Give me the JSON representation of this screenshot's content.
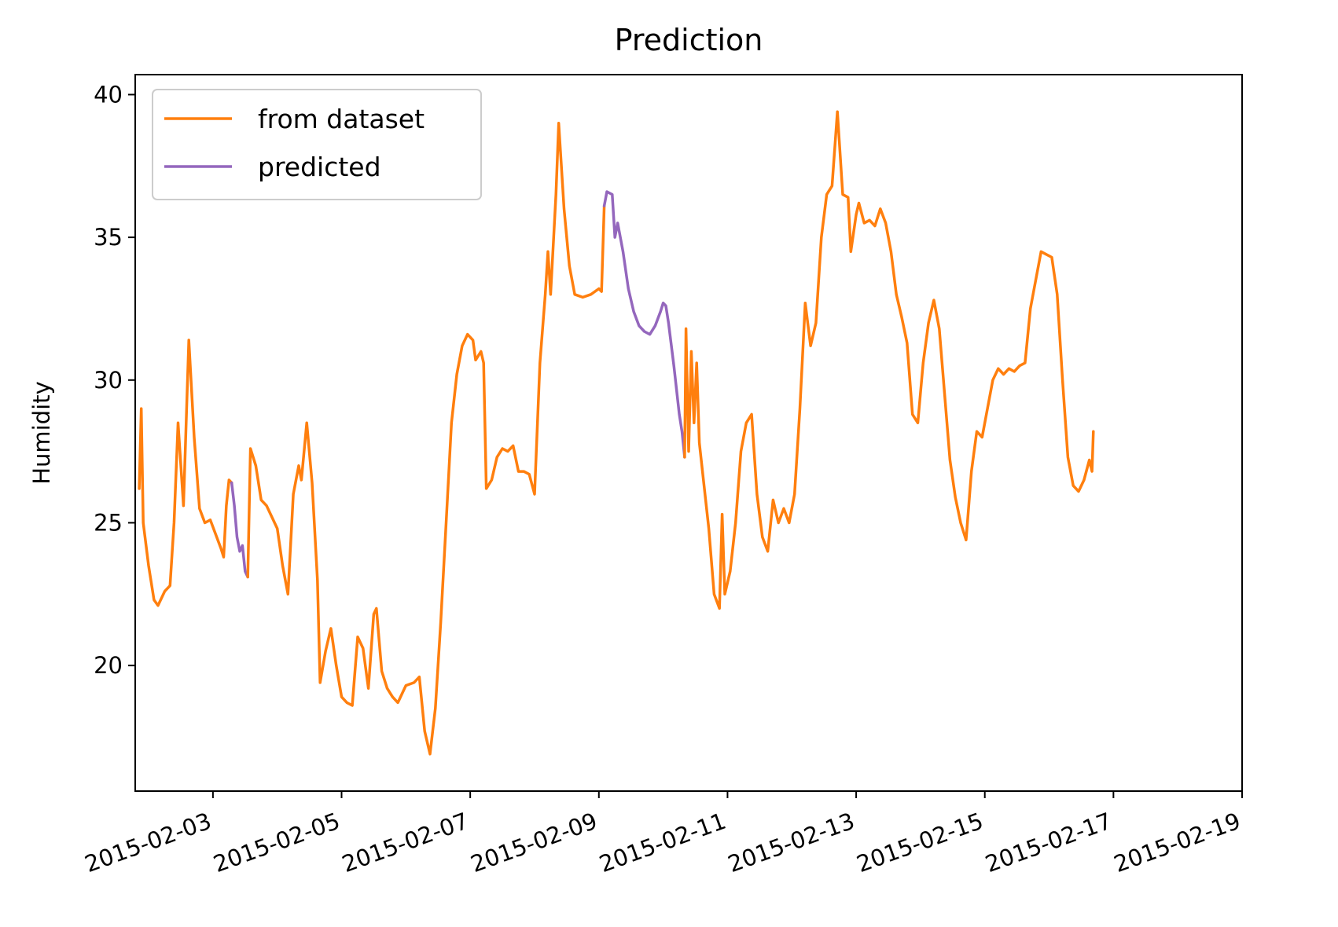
{
  "chart_data": {
    "type": "line",
    "title": "Prediction",
    "xlabel": "",
    "ylabel": "Humidity",
    "x_type": "date",
    "xlim": [
      "2015-02-01T19:00",
      "2015-02-19T00:00"
    ],
    "ylim": [
      15.6,
      40.7
    ],
    "x_ticks": [
      "2015-02-03",
      "2015-02-05",
      "2015-02-07",
      "2015-02-09",
      "2015-02-11",
      "2015-02-13",
      "2015-02-15",
      "2015-02-17",
      "2015-02-19"
    ],
    "y_ticks": [
      20,
      25,
      30,
      35,
      40
    ],
    "grid": false,
    "legend_position": "top-left",
    "series": [
      {
        "name": "from dataset",
        "color": "#ff7f0e",
        "points": [
          [
            "2015-02-01T20:30",
            26.2
          ],
          [
            "2015-02-01T21:15",
            29.0
          ],
          [
            "2015-02-01T22:00",
            25.0
          ],
          [
            "2015-02-02T00:00",
            23.5
          ],
          [
            "2015-02-02T02:00",
            22.3
          ],
          [
            "2015-02-02T03:30",
            22.1
          ],
          [
            "2015-02-02T06:00",
            22.6
          ],
          [
            "2015-02-02T08:00",
            22.8
          ],
          [
            "2015-02-02T09:30",
            25.0
          ],
          [
            "2015-02-02T11:00",
            28.5
          ],
          [
            "2015-02-02T13:00",
            25.6
          ],
          [
            "2015-02-02T15:00",
            31.4
          ],
          [
            "2015-02-02T17:00",
            28.0
          ],
          [
            "2015-02-02T19:00",
            25.5
          ],
          [
            "2015-02-02T21:00",
            25.0
          ],
          [
            "2015-02-02T23:00",
            25.1
          ],
          [
            "2015-02-03T01:00",
            24.6
          ],
          [
            "2015-02-03T03:00",
            24.1
          ],
          [
            "2015-02-03T04:00",
            23.8
          ],
          [
            "2015-02-03T05:00",
            25.6
          ],
          [
            "2015-02-03T06:00",
            26.5
          ],
          [
            "2015-02-03T07:00",
            26.4
          ]
        ]
      },
      {
        "name": "predicted",
        "color": "#9467bd",
        "points": [
          [
            "2015-02-03T07:00",
            26.4
          ],
          [
            "2015-02-03T08:00",
            25.6
          ],
          [
            "2015-02-03T09:00",
            24.5
          ],
          [
            "2015-02-03T10:00",
            24.0
          ],
          [
            "2015-02-03T11:00",
            24.2
          ],
          [
            "2015-02-03T12:00",
            23.3
          ],
          [
            "2015-02-03T13:00",
            23.1
          ]
        ]
      },
      {
        "name": "",
        "color": "#ff7f0e",
        "points": [
          [
            "2015-02-03T13:00",
            23.1
          ],
          [
            "2015-02-03T14:00",
            27.6
          ],
          [
            "2015-02-03T16:00",
            27.0
          ],
          [
            "2015-02-03T18:00",
            25.8
          ],
          [
            "2015-02-03T20:00",
            25.6
          ],
          [
            "2015-02-03T22:00",
            25.2
          ],
          [
            "2015-02-04T00:00",
            24.8
          ],
          [
            "2015-02-04T02:00",
            23.5
          ],
          [
            "2015-02-04T04:00",
            22.5
          ],
          [
            "2015-02-04T06:00",
            26.0
          ],
          [
            "2015-02-04T08:00",
            27.0
          ],
          [
            "2015-02-04T09:00",
            26.5
          ],
          [
            "2015-02-04T11:00",
            28.5
          ],
          [
            "2015-02-04T13:00",
            26.4
          ],
          [
            "2015-02-04T15:00",
            23.0
          ],
          [
            "2015-02-04T16:00",
            19.4
          ],
          [
            "2015-02-04T18:00",
            20.5
          ],
          [
            "2015-02-04T20:00",
            21.3
          ],
          [
            "2015-02-04T22:00",
            20.0
          ],
          [
            "2015-02-05T00:00",
            18.9
          ],
          [
            "2015-02-05T02:00",
            18.7
          ],
          [
            "2015-02-05T04:00",
            18.6
          ],
          [
            "2015-02-05T06:00",
            21.0
          ],
          [
            "2015-02-05T08:00",
            20.6
          ],
          [
            "2015-02-05T10:00",
            19.2
          ],
          [
            "2015-02-05T12:00",
            21.8
          ],
          [
            "2015-02-05T13:00",
            22.0
          ],
          [
            "2015-02-05T15:00",
            19.8
          ],
          [
            "2015-02-05T17:00",
            19.2
          ],
          [
            "2015-02-05T19:00",
            18.9
          ],
          [
            "2015-02-05T21:00",
            18.7
          ],
          [
            "2015-02-06T00:00",
            19.3
          ],
          [
            "2015-02-06T03:00",
            19.4
          ],
          [
            "2015-02-06T05:00",
            19.6
          ],
          [
            "2015-02-06T07:00",
            17.7
          ],
          [
            "2015-02-06T09:00",
            16.9
          ],
          [
            "2015-02-06T11:00",
            18.5
          ],
          [
            "2015-02-06T13:00",
            21.5
          ],
          [
            "2015-02-06T15:00",
            25.0
          ],
          [
            "2015-02-06T17:00",
            28.5
          ],
          [
            "2015-02-06T19:00",
            30.2
          ],
          [
            "2015-02-06T21:00",
            31.2
          ],
          [
            "2015-02-06T23:00",
            31.6
          ],
          [
            "2015-02-07T01:00",
            31.4
          ],
          [
            "2015-02-07T02:00",
            30.7
          ],
          [
            "2015-02-07T04:00",
            31.0
          ],
          [
            "2015-02-07T05:00",
            30.6
          ],
          [
            "2015-02-07T06:00",
            26.2
          ],
          [
            "2015-02-07T08:00",
            26.5
          ],
          [
            "2015-02-07T10:00",
            27.3
          ],
          [
            "2015-02-07T12:00",
            27.6
          ],
          [
            "2015-02-07T14:00",
            27.5
          ],
          [
            "2015-02-07T16:00",
            27.7
          ],
          [
            "2015-02-07T18:00",
            26.8
          ],
          [
            "2015-02-07T20:00",
            26.8
          ],
          [
            "2015-02-07T22:00",
            26.7
          ],
          [
            "2015-02-08T00:00",
            26.0
          ],
          [
            "2015-02-08T02:00",
            30.6
          ],
          [
            "2015-02-08T04:00",
            33.0
          ],
          [
            "2015-02-08T05:00",
            34.5
          ],
          [
            "2015-02-08T06:00",
            33.0
          ],
          [
            "2015-02-08T08:00",
            36.5
          ],
          [
            "2015-02-08T09:00",
            39.0
          ],
          [
            "2015-02-08T11:00",
            36.0
          ],
          [
            "2015-02-08T13:00",
            34.0
          ],
          [
            "2015-02-08T15:00",
            33.0
          ],
          [
            "2015-02-08T18:00",
            32.9
          ],
          [
            "2015-02-08T21:00",
            33.0
          ],
          [
            "2015-02-09T00:00",
            33.2
          ],
          [
            "2015-02-09T01:00",
            33.1
          ],
          [
            "2015-02-09T02:00",
            36.1
          ]
        ]
      },
      {
        "name": "",
        "color": "#9467bd",
        "points": [
          [
            "2015-02-09T02:00",
            36.1
          ],
          [
            "2015-02-09T03:00",
            36.6
          ],
          [
            "2015-02-09T05:00",
            36.5
          ],
          [
            "2015-02-09T06:00",
            35.0
          ],
          [
            "2015-02-09T07:00",
            35.5
          ],
          [
            "2015-02-09T09:00",
            34.5
          ],
          [
            "2015-02-09T11:00",
            33.2
          ],
          [
            "2015-02-09T13:00",
            32.4
          ],
          [
            "2015-02-09T15:00",
            31.9
          ],
          [
            "2015-02-09T17:00",
            31.7
          ],
          [
            "2015-02-09T19:00",
            31.6
          ],
          [
            "2015-02-09T21:00",
            31.9
          ],
          [
            "2015-02-09T23:00",
            32.4
          ],
          [
            "2015-02-10T00:00",
            32.7
          ],
          [
            "2015-02-10T01:00",
            32.6
          ],
          [
            "2015-02-10T02:00",
            32.0
          ],
          [
            "2015-02-10T04:00",
            30.5
          ],
          [
            "2015-02-10T06:00",
            28.8
          ],
          [
            "2015-02-10T07:00",
            28.2
          ],
          [
            "2015-02-10T08:00",
            27.3
          ]
        ]
      },
      {
        "name": "",
        "color": "#ff7f0e",
        "points": [
          [
            "2015-02-10T08:00",
            27.3
          ],
          [
            "2015-02-10T08:30",
            31.8
          ],
          [
            "2015-02-10T09:30",
            27.5
          ],
          [
            "2015-02-10T10:30",
            31.0
          ],
          [
            "2015-02-10T11:30",
            28.5
          ],
          [
            "2015-02-10T12:30",
            30.6
          ],
          [
            "2015-02-10T13:30",
            27.8
          ],
          [
            "2015-02-10T15:00",
            26.5
          ],
          [
            "2015-02-10T17:00",
            24.8
          ],
          [
            "2015-02-10T19:00",
            22.5
          ],
          [
            "2015-02-10T21:00",
            22.0
          ],
          [
            "2015-02-10T22:00",
            25.3
          ],
          [
            "2015-02-10T23:00",
            22.5
          ],
          [
            "2015-02-11T01:00",
            23.3
          ],
          [
            "2015-02-11T03:00",
            25.0
          ],
          [
            "2015-02-11T05:00",
            27.5
          ],
          [
            "2015-02-11T07:00",
            28.5
          ],
          [
            "2015-02-11T09:00",
            28.8
          ],
          [
            "2015-02-11T11:00",
            26.0
          ],
          [
            "2015-02-11T13:00",
            24.5
          ],
          [
            "2015-02-11T15:00",
            24.0
          ],
          [
            "2015-02-11T17:00",
            25.8
          ],
          [
            "2015-02-11T19:00",
            25.0
          ],
          [
            "2015-02-11T21:00",
            25.5
          ],
          [
            "2015-02-11T23:00",
            25.0
          ],
          [
            "2015-02-12T01:00",
            26.0
          ],
          [
            "2015-02-12T03:00",
            29.0
          ],
          [
            "2015-02-12T05:00",
            32.7
          ],
          [
            "2015-02-12T07:00",
            31.2
          ],
          [
            "2015-02-12T09:00",
            32.0
          ],
          [
            "2015-02-12T11:00",
            35.0
          ],
          [
            "2015-02-12T13:00",
            36.5
          ],
          [
            "2015-02-12T15:00",
            36.8
          ],
          [
            "2015-02-12T17:00",
            39.4
          ],
          [
            "2015-02-12T19:00",
            36.5
          ],
          [
            "2015-02-12T21:00",
            36.4
          ],
          [
            "2015-02-12T22:00",
            34.5
          ],
          [
            "2015-02-13T00:00",
            35.8
          ],
          [
            "2015-02-13T01:00",
            36.2
          ],
          [
            "2015-02-13T03:00",
            35.5
          ],
          [
            "2015-02-13T05:00",
            35.6
          ],
          [
            "2015-02-13T07:00",
            35.4
          ],
          [
            "2015-02-13T09:00",
            36.0
          ],
          [
            "2015-02-13T11:00",
            35.5
          ],
          [
            "2015-02-13T13:00",
            34.5
          ],
          [
            "2015-02-13T15:00",
            33.0
          ],
          [
            "2015-02-13T17:00",
            32.2
          ],
          [
            "2015-02-13T19:00",
            31.3
          ],
          [
            "2015-02-13T21:00",
            28.8
          ],
          [
            "2015-02-13T23:00",
            28.5
          ],
          [
            "2015-02-14T01:00",
            30.6
          ],
          [
            "2015-02-14T03:00",
            32.0
          ],
          [
            "2015-02-14T05:00",
            32.8
          ],
          [
            "2015-02-14T07:00",
            31.8
          ],
          [
            "2015-02-14T09:00",
            29.5
          ],
          [
            "2015-02-14T11:00",
            27.2
          ],
          [
            "2015-02-14T13:00",
            25.9
          ],
          [
            "2015-02-14T15:00",
            25.0
          ],
          [
            "2015-02-14T17:00",
            24.4
          ],
          [
            "2015-02-14T19:00",
            26.8
          ],
          [
            "2015-02-14T21:00",
            28.2
          ],
          [
            "2015-02-14T23:00",
            28.0
          ],
          [
            "2015-02-15T01:00",
            29.0
          ],
          [
            "2015-02-15T03:00",
            30.0
          ],
          [
            "2015-02-15T05:00",
            30.4
          ],
          [
            "2015-02-15T07:00",
            30.2
          ],
          [
            "2015-02-15T09:00",
            30.4
          ],
          [
            "2015-02-15T11:00",
            30.3
          ],
          [
            "2015-02-15T13:00",
            30.5
          ],
          [
            "2015-02-15T15:00",
            30.6
          ],
          [
            "2015-02-15T17:00",
            32.5
          ],
          [
            "2015-02-15T19:00",
            33.5
          ],
          [
            "2015-02-15T21:00",
            34.5
          ],
          [
            "2015-02-15T23:00",
            34.4
          ],
          [
            "2015-02-16T01:00",
            34.3
          ],
          [
            "2015-02-16T03:00",
            33.0
          ],
          [
            "2015-02-16T05:00",
            30.0
          ],
          [
            "2015-02-16T07:00",
            27.3
          ],
          [
            "2015-02-16T09:00",
            26.3
          ],
          [
            "2015-02-16T11:00",
            26.1
          ],
          [
            "2015-02-16T13:00",
            26.5
          ],
          [
            "2015-02-16T15:00",
            27.2
          ],
          [
            "2015-02-16T16:00",
            26.8
          ],
          [
            "2015-02-16T16:30",
            28.2
          ]
        ]
      }
    ]
  }
}
